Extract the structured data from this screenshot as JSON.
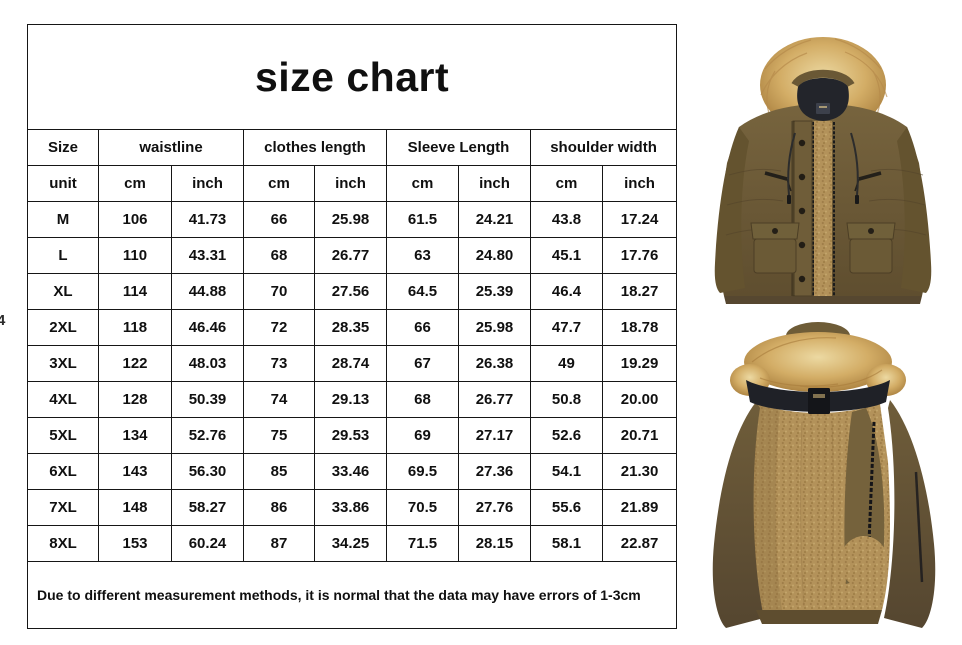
{
  "page": {
    "background": "#ffffff",
    "left_edge_artifact": "4"
  },
  "size_chart": {
    "title": "size chart",
    "header": {
      "size_label": "Size",
      "groups": [
        {
          "label": "waistline"
        },
        {
          "label": "clothes length"
        },
        {
          "label": "Sleeve Length"
        },
        {
          "label": "shoulder width"
        }
      ]
    },
    "unit_row": {
      "label": "unit",
      "units": [
        "cm",
        "inch",
        "cm",
        "inch",
        "cm",
        "inch",
        "cm",
        "inch"
      ]
    },
    "rows": [
      {
        "size": "M",
        "values": [
          "106",
          "41.73",
          "66",
          "25.98",
          "61.5",
          "24.21",
          "43.8",
          "17.24"
        ]
      },
      {
        "size": "L",
        "values": [
          "110",
          "43.31",
          "68",
          "26.77",
          "63",
          "24.80",
          "45.1",
          "17.76"
        ]
      },
      {
        "size": "XL",
        "values": [
          "114",
          "44.88",
          "70",
          "27.56",
          "64.5",
          "25.39",
          "46.4",
          "18.27"
        ]
      },
      {
        "size": "2XL",
        "values": [
          "118",
          "46.46",
          "72",
          "28.35",
          "66",
          "25.98",
          "47.7",
          "18.78"
        ]
      },
      {
        "size": "3XL",
        "values": [
          "122",
          "48.03",
          "73",
          "28.74",
          "67",
          "26.38",
          "49",
          "19.29"
        ]
      },
      {
        "size": "4XL",
        "values": [
          "128",
          "50.39",
          "74",
          "29.13",
          "68",
          "26.77",
          "50.8",
          "20.00"
        ]
      },
      {
        "size": "5XL",
        "values": [
          "134",
          "52.76",
          "75",
          "29.53",
          "69",
          "27.17",
          "52.6",
          "20.71"
        ]
      },
      {
        "size": "6XL",
        "values": [
          "143",
          "56.30",
          "85",
          "33.46",
          "69.5",
          "27.36",
          "54.1",
          "21.30"
        ]
      },
      {
        "size": "7XL",
        "values": [
          "148",
          "58.27",
          "86",
          "33.86",
          "70.5",
          "27.76",
          "55.6",
          "21.89"
        ]
      },
      {
        "size": "8XL",
        "values": [
          "153",
          "60.24",
          "87",
          "34.25",
          "71.5",
          "28.15",
          "58.1",
          "22.87"
        ]
      }
    ],
    "note": "Due to different measurement methods, it is normal that the data may have errors of 1-3cm"
  },
  "product_images": {
    "front_view": "parka-front-with-fur-hood",
    "lining_view": "parka-open-fleece-lining",
    "colors": {
      "shell": "#6e5c38",
      "shell_shadow": "#564730",
      "fur_light": "#ecd9a2",
      "fur_dark": "#a87e3d",
      "fleece": "#b3925a",
      "collar": "#1f2127"
    }
  }
}
